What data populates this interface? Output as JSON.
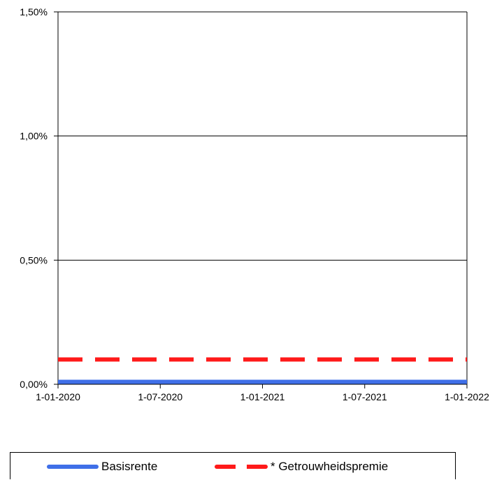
{
  "chart_data": {
    "type": "line",
    "title": "",
    "xlabel": "",
    "ylabel": "",
    "x_ticks": [
      "1-01-2020",
      "1-07-2020",
      "1-01-2021",
      "1-07-2021",
      "1-01-2022"
    ],
    "x_range": [
      "2020-01-01",
      "2022-01-01"
    ],
    "y_ticks": [
      "0,00%",
      "0,50%",
      "1,00%",
      "1,50%"
    ],
    "ylim": [
      0,
      1.5
    ],
    "grid": "horizontal",
    "legend_position": "bottom",
    "series": [
      {
        "name": "Basisrente",
        "color": "#3f6fe8",
        "style": "solid",
        "points": [
          {
            "x": "2020-01-01",
            "y": 0.01
          },
          {
            "x": "2022-01-01",
            "y": 0.01
          }
        ]
      },
      {
        "name": "* Getrouwheidspremie",
        "color": "#ff1a1a",
        "style": "dashed",
        "points": [
          {
            "x": "2020-01-01",
            "y": 0.1
          },
          {
            "x": "2022-01-01",
            "y": 0.1
          }
        ]
      }
    ]
  }
}
